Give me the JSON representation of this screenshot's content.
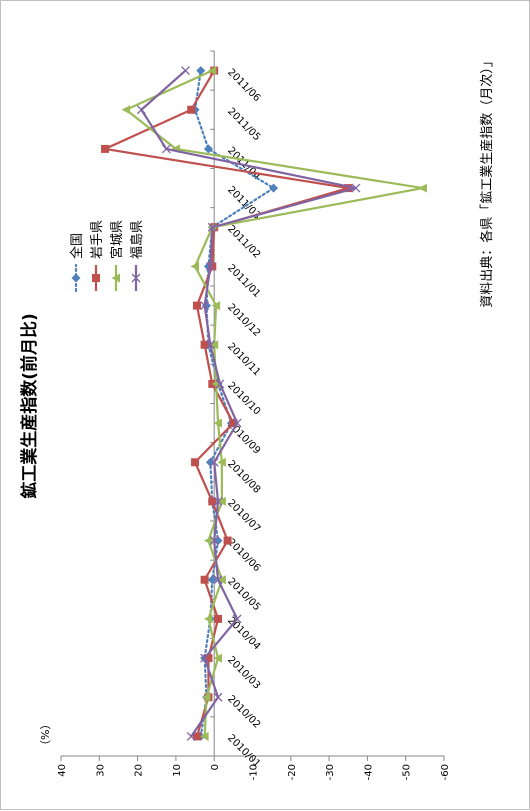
{
  "chart_data": {
    "type": "line",
    "title": "鉱工業生産指数(前月比)",
    "unit": "（%）",
    "source": "資料出典：各県「鉱工業生産指数（月次）」",
    "x": [
      "2010/01",
      "2010/02",
      "2010/03",
      "2010/04",
      "2010/05",
      "2010/06",
      "2010/07",
      "2010/08",
      "2010/09",
      "2010/10",
      "2010/11",
      "2010/12",
      "2011/01",
      "2011/02",
      "2011/03",
      "2011/04",
      "2011/05",
      "2011/06"
    ],
    "ylim": [
      -60,
      40
    ],
    "yticks": [
      40,
      30,
      20,
      10,
      0,
      -10,
      -20,
      -30,
      -40,
      -50,
      -60
    ],
    "legend_position": "upper-left",
    "series": [
      {
        "name": "全国",
        "color": "#4f81bd",
        "marker": "diamond",
        "dash": "dotted",
        "values": [
          3.5,
          2.0,
          2.5,
          1.0,
          0.5,
          -1.0,
          0.5,
          1.0,
          -4.5,
          -1.0,
          1.5,
          2.0,
          1.5,
          0.5,
          -15.5,
          1.5,
          5.0,
          3.5
        ]
      },
      {
        "name": "岩手県",
        "color": "#c0504d",
        "marker": "square",
        "dash": "solid",
        "values": [
          4.5,
          1.5,
          1.5,
          -1.0,
          2.5,
          -3.5,
          0.5,
          5.0,
          -5.0,
          0.5,
          2.5,
          4.5,
          0.5,
          0.0,
          -35.0,
          28.5,
          6.0,
          0.0
        ]
      },
      {
        "name": "宮城県",
        "color": "#9bbb59",
        "marker": "triangle",
        "dash": "solid",
        "values": [
          2.5,
          2.0,
          -1.0,
          1.5,
          -2.0,
          1.5,
          -2.0,
          -2.0,
          -1.0,
          -0.5,
          0.0,
          -0.5,
          5.0,
          0.5,
          -54.5,
          10.0,
          23.0,
          0.5
        ]
      },
      {
        "name": "福島県",
        "color": "#8064a2",
        "marker": "x",
        "dash": "solid",
        "values": [
          6.0,
          -1.0,
          2.5,
          -6.0,
          -1.0,
          0.0,
          -1.0,
          0.0,
          -6.0,
          -1.5,
          1.0,
          2.5,
          1.0,
          0.5,
          -37.0,
          12.5,
          19.0,
          7.5
        ]
      }
    ]
  }
}
